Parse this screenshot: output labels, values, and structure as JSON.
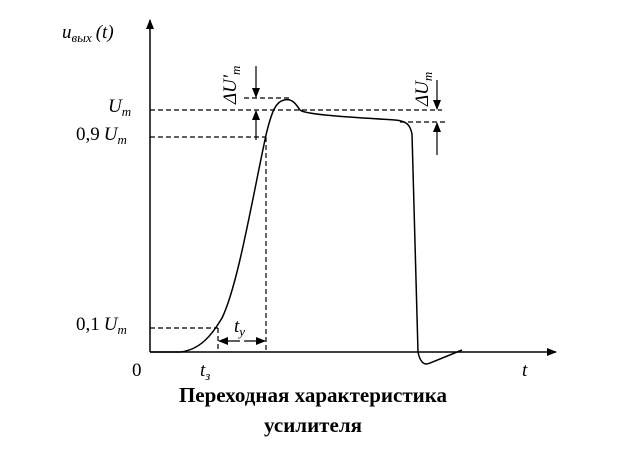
{
  "y_axis_label": {
    "symbol": "u",
    "subscript": "вых",
    "argument": "(t)"
  },
  "x_axis_label": "t",
  "origin": "0",
  "levels": {
    "max": {
      "symbol": "U",
      "subscript": "m"
    },
    "high": {
      "coefficient": "0,9",
      "symbol": "U",
      "subscript": "m"
    },
    "low": {
      "coefficient": "0,1",
      "symbol": "U",
      "subscript": "m"
    }
  },
  "overshoot_label": {
    "prefix": "Δ",
    "symbol": "U'",
    "subscript": "m"
  },
  "droop_label": {
    "prefix": "Δ",
    "symbol": "U",
    "subscript": "m"
  },
  "delay_label": {
    "symbol": "t",
    "subscript": "з"
  },
  "rise_label": {
    "symbol": "t",
    "subscript": "у"
  },
  "caption": [
    "Переходная характеристика",
    "усилителя"
  ]
}
